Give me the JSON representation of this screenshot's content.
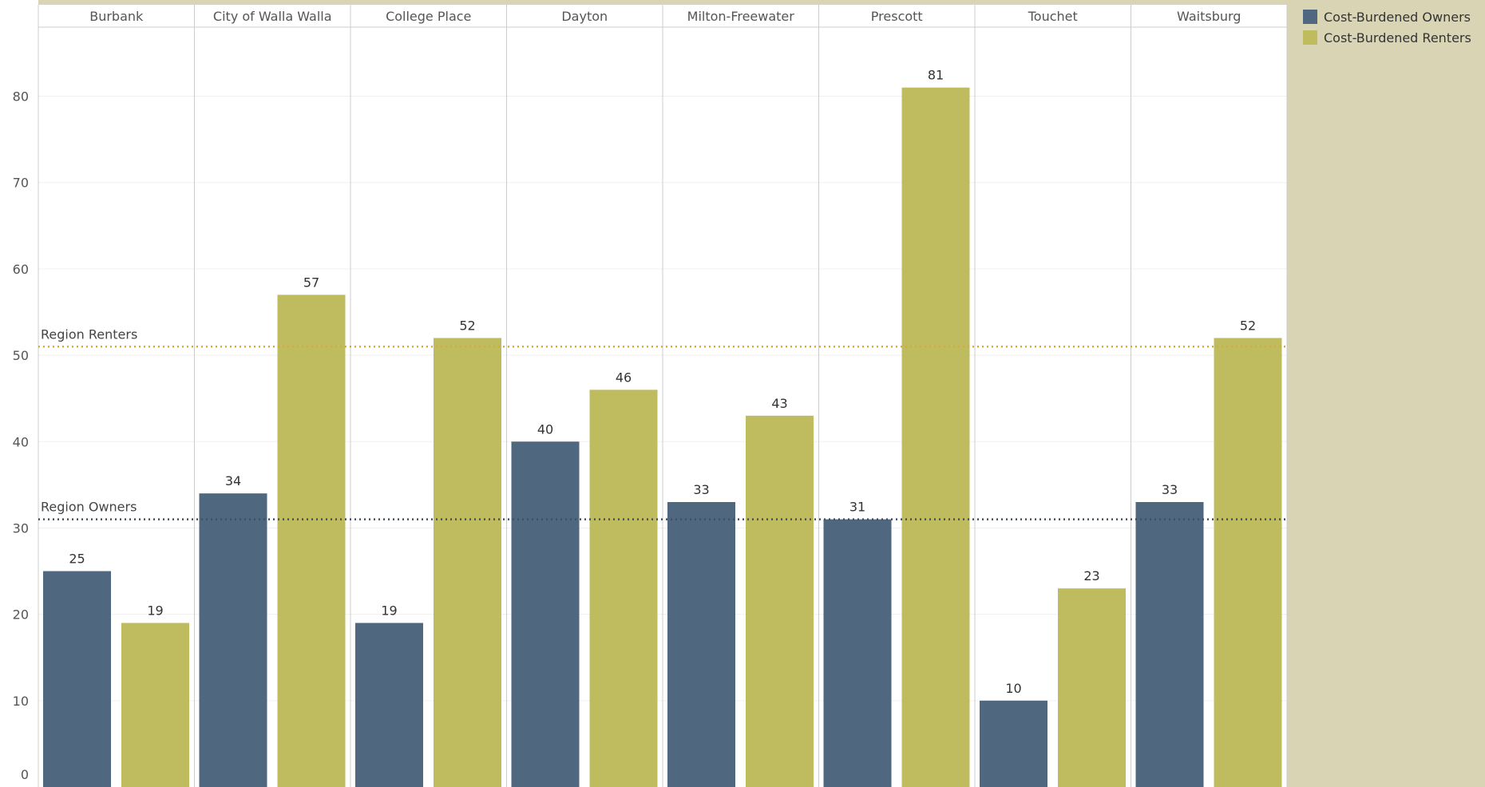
{
  "chart_data": {
    "type": "bar",
    "categories": [
      "Burbank",
      "City of Walla Walla",
      "College Place",
      "Dayton",
      "Milton-Freewater",
      "Prescott",
      "Touchet",
      "Waitsburg"
    ],
    "series": [
      {
        "name": "Cost-Burdened Owners",
        "values": [
          25,
          34,
          19,
          40,
          33,
          31,
          10,
          33
        ],
        "color": "#4f677f"
      },
      {
        "name": "Cost-Burdened Renters",
        "values": [
          19,
          57,
          52,
          46,
          43,
          81,
          23,
          52
        ],
        "color": "#bfbc60"
      }
    ],
    "ylim": [
      0,
      88
    ],
    "yticks": [
      0,
      10,
      20,
      30,
      40,
      50,
      60,
      70,
      80
    ],
    "reference_lines": [
      {
        "label": "Region Renters",
        "value": 51,
        "color": "#e0a830"
      },
      {
        "label": "Region Owners",
        "value": 31,
        "color": "#3d4f63"
      }
    ],
    "grid": true,
    "legend_position": "top-right"
  }
}
